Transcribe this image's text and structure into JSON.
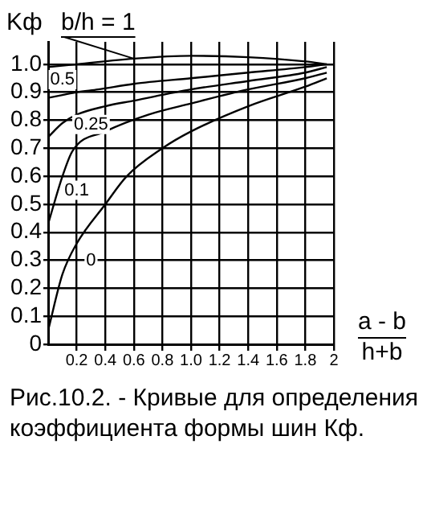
{
  "chart_data": {
    "type": "line",
    "ylabel": "Kф",
    "xlabel": "a - b\nh+b",
    "xlim": [
      0,
      2
    ],
    "ylim": [
      0,
      1.08
    ],
    "xticks": [
      0.2,
      0.4,
      0.6,
      0.8,
      {
        "value": 1,
        "label": "1.0"
      },
      1.2,
      1.4,
      1.6,
      1.8,
      2
    ],
    "yticks": [
      0,
      0.1,
      0.2,
      0.3,
      0.4,
      0.5,
      0.6,
      0.7,
      0.8,
      0.9,
      {
        "value": 1,
        "label": "1.0"
      }
    ],
    "grid": true,
    "legend": false,
    "marker": "none",
    "line_style": "solid",
    "series": [
      {
        "name": "b/h = 1",
        "color": "#000000",
        "x": [
          0,
          0.2,
          0.6,
          1.0,
          1.4,
          1.8,
          1.95
        ],
        "values": [
          0.99,
          1.0,
          1.02,
          1.03,
          1.025,
          1.01,
          1.0
        ]
      },
      {
        "name": "0.5",
        "color": "#000000",
        "x": [
          0,
          0.1,
          0.2,
          0.35,
          0.6,
          1.0,
          1.4,
          1.8,
          1.95
        ],
        "values": [
          0.88,
          0.89,
          0.9,
          0.91,
          0.93,
          0.95,
          0.97,
          0.99,
          1.0
        ]
      },
      {
        "name": "0.25",
        "color": "#000000",
        "x": [
          0,
          0.1,
          0.2,
          0.4,
          0.6,
          1.0,
          1.4,
          1.8,
          1.95
        ],
        "values": [
          0.74,
          0.79,
          0.82,
          0.85,
          0.87,
          0.91,
          0.94,
          0.97,
          0.99
        ]
      },
      {
        "name": "0.1",
        "color": "#000000",
        "x": [
          0,
          0.1,
          0.17,
          0.4,
          0.7,
          1.0,
          1.4,
          1.8,
          1.95
        ],
        "values": [
          0.43,
          0.6,
          0.69,
          0.76,
          0.82,
          0.86,
          0.91,
          0.95,
          0.97
        ]
      },
      {
        "name": "0",
        "color": "#000000",
        "x": [
          0,
          0.1,
          0.2,
          0.4,
          0.55,
          0.8,
          1.0,
          1.4,
          1.8,
          1.95
        ],
        "values": [
          0.05,
          0.25,
          0.36,
          0.5,
          0.6,
          0.7,
          0.76,
          0.85,
          0.92,
          0.95
        ]
      }
    ],
    "annotations": [
      "Рис.10.2. - Кривые для определения коэффициента формы шин  Кф."
    ]
  }
}
